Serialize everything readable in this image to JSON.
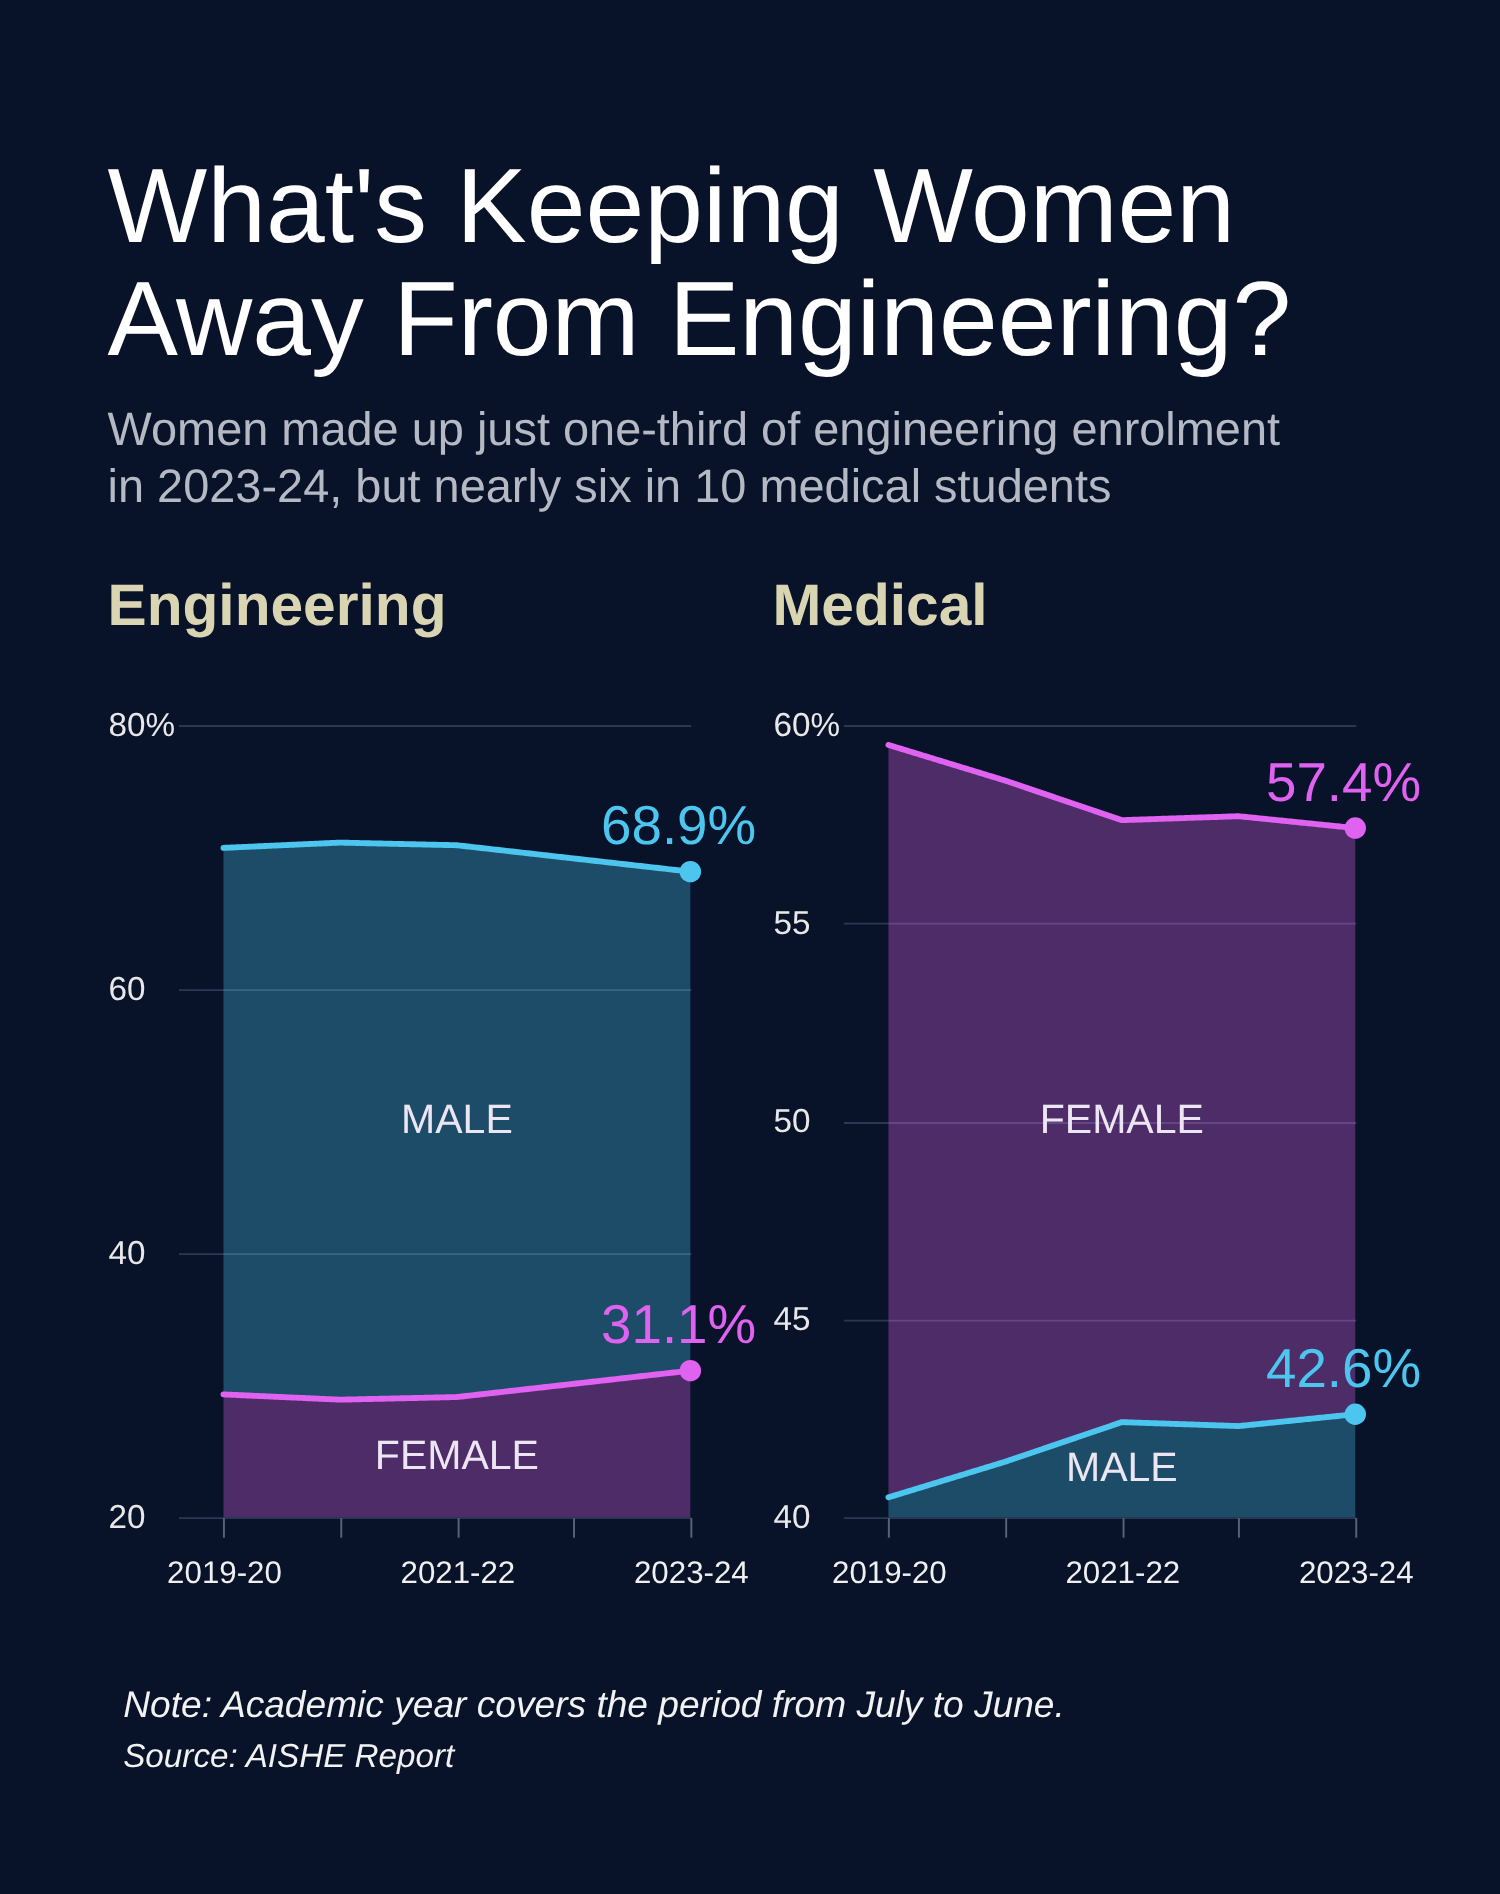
{
  "chart_data": [
    {
      "type": "other",
      "title": "What's Keeping Women Away From Engineering?",
      "subtitle": "Women made up just one-third of engineering enrolment in 2023-24, but nearly six in 10 medical students",
      "annotations": [
        "Note: Academic year covers the period from July to June.",
        "Source: AISHE Report"
      ]
    },
    {
      "type": "area",
      "title": "Engineering",
      "categories": [
        "2019-20",
        null,
        "2021-22",
        null,
        "2023-24"
      ],
      "series": [
        {
          "name": "MALE",
          "color": "#4cc6ee",
          "values": [
            70.7,
            71.1,
            70.9,
            69.9,
            68.9
          ],
          "value_labels": [
            null,
            null,
            null,
            null,
            "68.9%"
          ]
        },
        {
          "name": "FEMALE",
          "color": "#e062f0",
          "values": [
            29.3,
            28.9,
            29.1,
            30.1,
            31.1
          ],
          "value_labels": [
            null,
            null,
            null,
            null,
            "31.1%"
          ]
        }
      ],
      "ylim": [
        20,
        80
      ],
      "yticks": [
        20,
        40,
        60,
        {
          "value": 80,
          "label": "80%"
        }
      ],
      "grid": "y"
    },
    {
      "type": "area",
      "title": "Medical",
      "categories": [
        "2019-20",
        null,
        "2021-22",
        null,
        "2023-24"
      ],
      "series": [
        {
          "name": "FEMALE",
          "color": "#e062f0",
          "values": [
            59.5,
            58.6,
            57.6,
            57.7,
            57.4
          ],
          "value_labels": [
            null,
            null,
            null,
            null,
            "57.4%"
          ]
        },
        {
          "name": "MALE",
          "color": "#4cc6ee",
          "values": [
            40.5,
            41.4,
            42.4,
            42.3,
            42.6
          ],
          "value_labels": [
            null,
            null,
            null,
            null,
            "42.6%"
          ]
        }
      ],
      "ylim": [
        40,
        60
      ],
      "yticks": [
        40,
        45,
        50,
        55,
        {
          "value": 60,
          "label": "60%"
        }
      ],
      "grid": "y"
    }
  ]
}
